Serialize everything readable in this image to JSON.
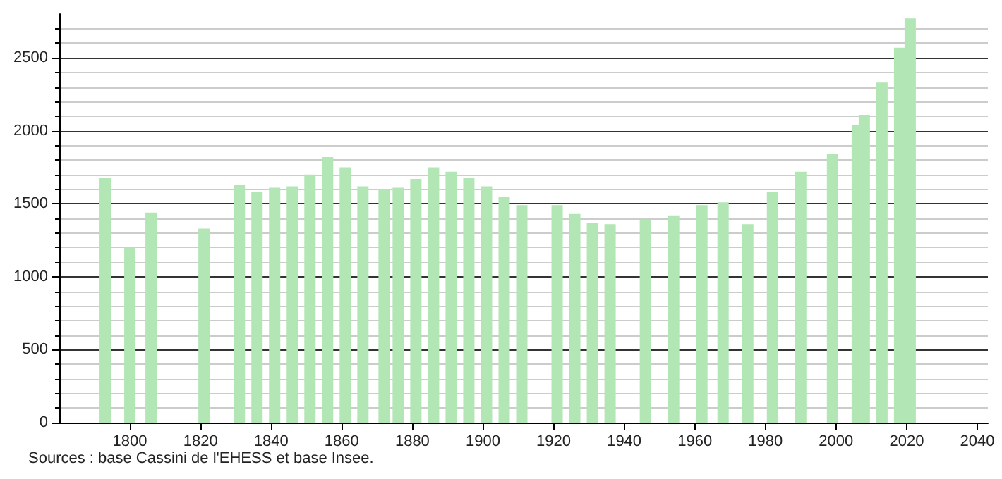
{
  "chart_data": {
    "type": "bar",
    "x": [
      1793,
      1800,
      1806,
      1821,
      1831,
      1836,
      1841,
      1846,
      1851,
      1856,
      1861,
      1866,
      1872,
      1876,
      1881,
      1886,
      1891,
      1896,
      1901,
      1906,
      1911,
      1921,
      1926,
      1931,
      1936,
      1946,
      1954,
      1962,
      1968,
      1975,
      1982,
      1990,
      1999,
      2006,
      2008,
      2013,
      2018,
      2021
    ],
    "values": [
      1680,
      1200,
      1440,
      1330,
      1630,
      1580,
      1610,
      1620,
      1700,
      1820,
      1750,
      1620,
      1600,
      1610,
      1670,
      1750,
      1720,
      1680,
      1620,
      1550,
      1490,
      1490,
      1430,
      1370,
      1360,
      1390,
      1420,
      1490,
      1510,
      1360,
      1580,
      1720,
      1840,
      2040,
      2110,
      2330,
      2570,
      2770
    ],
    "color": "#b3e6b5",
    "xlim": [
      1780,
      2043
    ],
    "xticks": [
      1800,
      1820,
      1840,
      1860,
      1880,
      1900,
      1920,
      1940,
      1960,
      1980,
      2000,
      2020,
      2040
    ],
    "ylim": [
      0,
      2800
    ],
    "yticks": [
      0,
      500,
      1000,
      1500,
      2000,
      2500
    ],
    "grid": "y",
    "annotations": [
      "Sources : base Cassini de l'EHESS et base Insee."
    ]
  }
}
